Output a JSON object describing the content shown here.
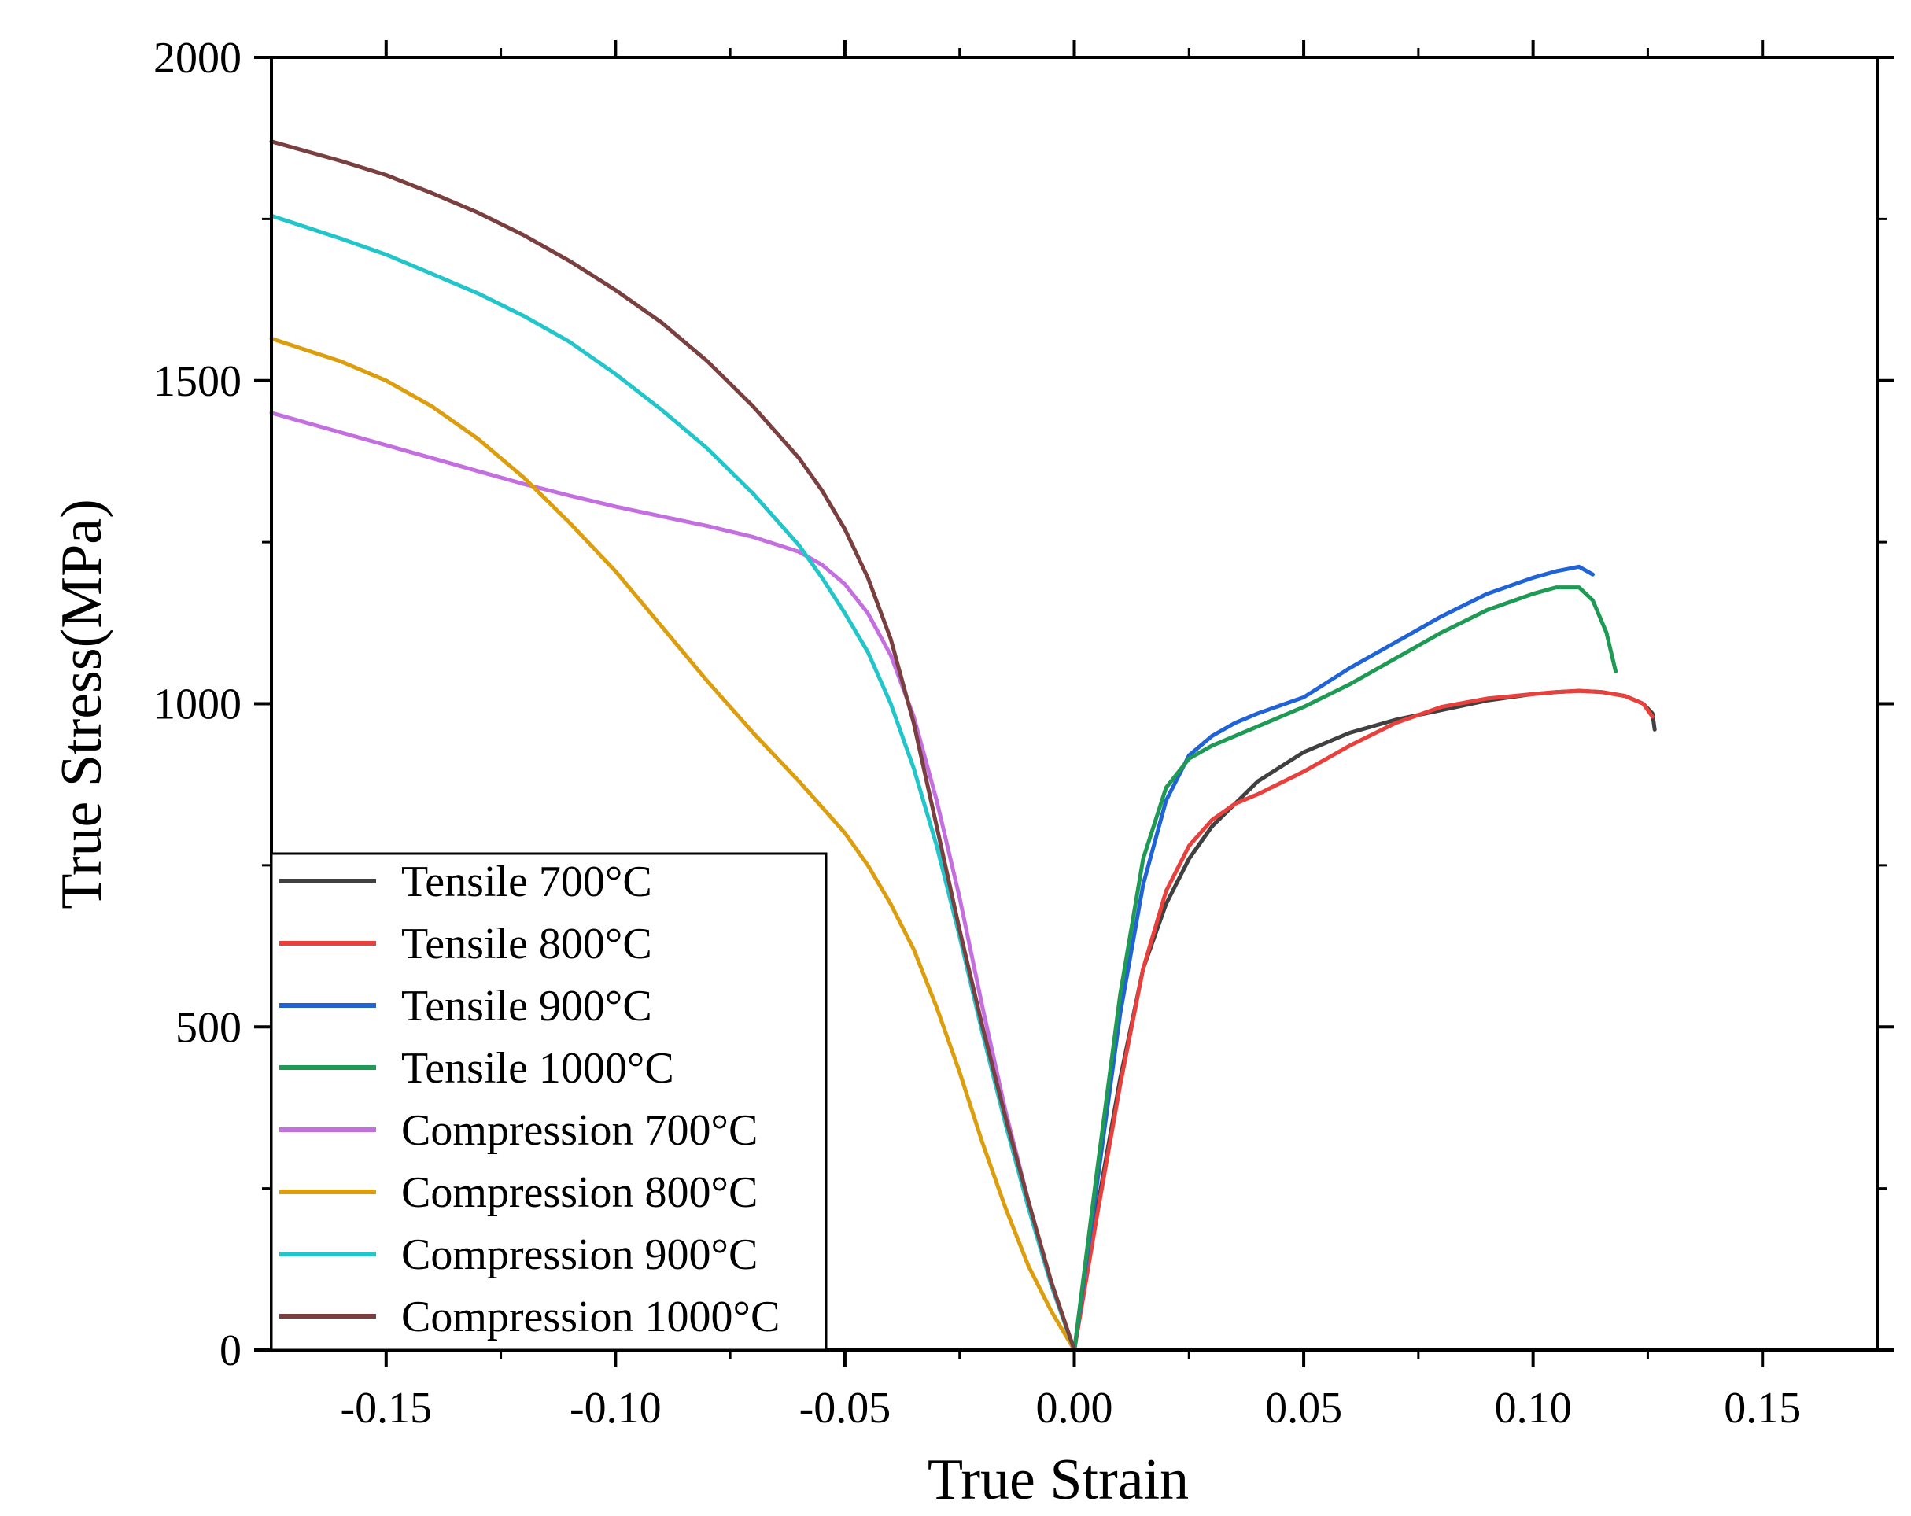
{
  "chart_data": {
    "type": "line",
    "title": "",
    "xlabel": "True Strain",
    "ylabel": "True Stress(MPa)",
    "xlim": [
      -0.175,
      0.175
    ],
    "ylim": [
      0,
      2000
    ],
    "xticks": [
      -0.15,
      -0.1,
      -0.05,
      0.0,
      0.05,
      0.1,
      0.15
    ],
    "xtick_labels": [
      "-0.15",
      "-0.10",
      "-0.05",
      "0.00",
      "0.05",
      "0.10",
      "0.15"
    ],
    "yticks": [
      0,
      500,
      1000,
      1500,
      2000
    ],
    "ytick_labels": [
      "0",
      "500",
      "1000",
      "1500",
      "2000"
    ],
    "grid": false,
    "legend_position": "bottom-left",
    "series": [
      {
        "name": "Tensile 700°C",
        "color": "#404040",
        "x": [
          0,
          0.005,
          0.01,
          0.015,
          0.02,
          0.025,
          0.03,
          0.04,
          0.05,
          0.06,
          0.07,
          0.08,
          0.09,
          0.1,
          0.105,
          0.11,
          0.115,
          0.12,
          0.124,
          0.126,
          0.1265
        ],
        "y": [
          0,
          220,
          420,
          590,
          690,
          760,
          810,
          880,
          925,
          955,
          975,
          990,
          1005,
          1015,
          1018,
          1020,
          1018,
          1012,
          1000,
          985,
          960
        ]
      },
      {
        "name": "Tensile 800°C",
        "color": "#e8403c",
        "x": [
          0,
          0.005,
          0.01,
          0.015,
          0.02,
          0.025,
          0.03,
          0.035,
          0.04,
          0.05,
          0.06,
          0.07,
          0.08,
          0.09,
          0.1,
          0.105,
          0.11,
          0.115,
          0.12,
          0.124,
          0.126
        ],
        "y": [
          0,
          210,
          410,
          590,
          710,
          780,
          820,
          845,
          860,
          895,
          935,
          970,
          995,
          1008,
          1015,
          1018,
          1020,
          1018,
          1012,
          1000,
          980
        ]
      },
      {
        "name": "Tensile 900°C",
        "color": "#1f63d6",
        "x": [
          0,
          0.005,
          0.01,
          0.015,
          0.02,
          0.025,
          0.03,
          0.035,
          0.04,
          0.05,
          0.06,
          0.07,
          0.08,
          0.09,
          0.1,
          0.105,
          0.11,
          0.113
        ],
        "y": [
          0,
          260,
          520,
          720,
          850,
          920,
          950,
          970,
          985,
          1010,
          1055,
          1095,
          1135,
          1170,
          1195,
          1205,
          1212,
          1200
        ]
      },
      {
        "name": "Tensile 1000°C",
        "color": "#1e9a55",
        "x": [
          0,
          0.005,
          0.01,
          0.015,
          0.02,
          0.025,
          0.03,
          0.035,
          0.04,
          0.05,
          0.06,
          0.07,
          0.08,
          0.09,
          0.1,
          0.105,
          0.11,
          0.113,
          0.116,
          0.118
        ],
        "y": [
          0,
          280,
          550,
          760,
          870,
          915,
          935,
          950,
          965,
          995,
          1030,
          1070,
          1110,
          1145,
          1170,
          1180,
          1180,
          1160,
          1110,
          1050
        ]
      },
      {
        "name": "Compression 700°C",
        "color": "#c46fe0",
        "x": [
          -0.175,
          -0.16,
          -0.15,
          -0.14,
          -0.13,
          -0.12,
          -0.11,
          -0.1,
          -0.09,
          -0.08,
          -0.07,
          -0.06,
          -0.055,
          -0.05,
          -0.045,
          -0.04,
          -0.035,
          -0.03,
          -0.025,
          -0.02,
          -0.015,
          -0.01,
          -0.005,
          0
        ],
        "y": [
          1450,
          1420,
          1400,
          1380,
          1360,
          1340,
          1322,
          1305,
          1290,
          1275,
          1258,
          1235,
          1215,
          1185,
          1140,
          1075,
          980,
          850,
          700,
          530,
          370,
          230,
          100,
          0
        ]
      },
      {
        "name": "Compression 800°C",
        "color": "#dc9e0e",
        "x": [
          -0.175,
          -0.16,
          -0.15,
          -0.14,
          -0.13,
          -0.12,
          -0.11,
          -0.1,
          -0.09,
          -0.08,
          -0.07,
          -0.06,
          -0.05,
          -0.045,
          -0.04,
          -0.035,
          -0.03,
          -0.025,
          -0.02,
          -0.015,
          -0.01,
          -0.005,
          0
        ],
        "y": [
          1565,
          1530,
          1500,
          1460,
          1410,
          1350,
          1280,
          1205,
          1120,
          1035,
          955,
          880,
          800,
          750,
          690,
          620,
          530,
          430,
          320,
          220,
          130,
          60,
          0
        ]
      },
      {
        "name": "Compression 900°C",
        "color": "#22c5c9",
        "x": [
          -0.175,
          -0.16,
          -0.15,
          -0.14,
          -0.13,
          -0.12,
          -0.11,
          -0.1,
          -0.09,
          -0.08,
          -0.07,
          -0.06,
          -0.055,
          -0.05,
          -0.045,
          -0.04,
          -0.035,
          -0.03,
          -0.025,
          -0.02,
          -0.015,
          -0.01,
          -0.005,
          0
        ],
        "y": [
          1755,
          1720,
          1695,
          1665,
          1635,
          1600,
          1560,
          1510,
          1455,
          1395,
          1325,
          1245,
          1195,
          1140,
          1080,
          1000,
          900,
          780,
          640,
          490,
          350,
          220,
          100,
          0
        ]
      },
      {
        "name": "Compression 1000°C",
        "color": "#7a3f3f",
        "x": [
          -0.175,
          -0.16,
          -0.15,
          -0.14,
          -0.13,
          -0.12,
          -0.11,
          -0.1,
          -0.09,
          -0.08,
          -0.07,
          -0.06,
          -0.055,
          -0.05,
          -0.045,
          -0.04,
          -0.035,
          -0.03,
          -0.025,
          -0.02,
          -0.015,
          -0.01,
          -0.005,
          0
        ],
        "y": [
          1870,
          1840,
          1818,
          1790,
          1760,
          1725,
          1685,
          1640,
          1590,
          1530,
          1460,
          1380,
          1330,
          1270,
          1195,
          1100,
          970,
          810,
          650,
          500,
          360,
          230,
          105,
          0
        ]
      }
    ]
  }
}
